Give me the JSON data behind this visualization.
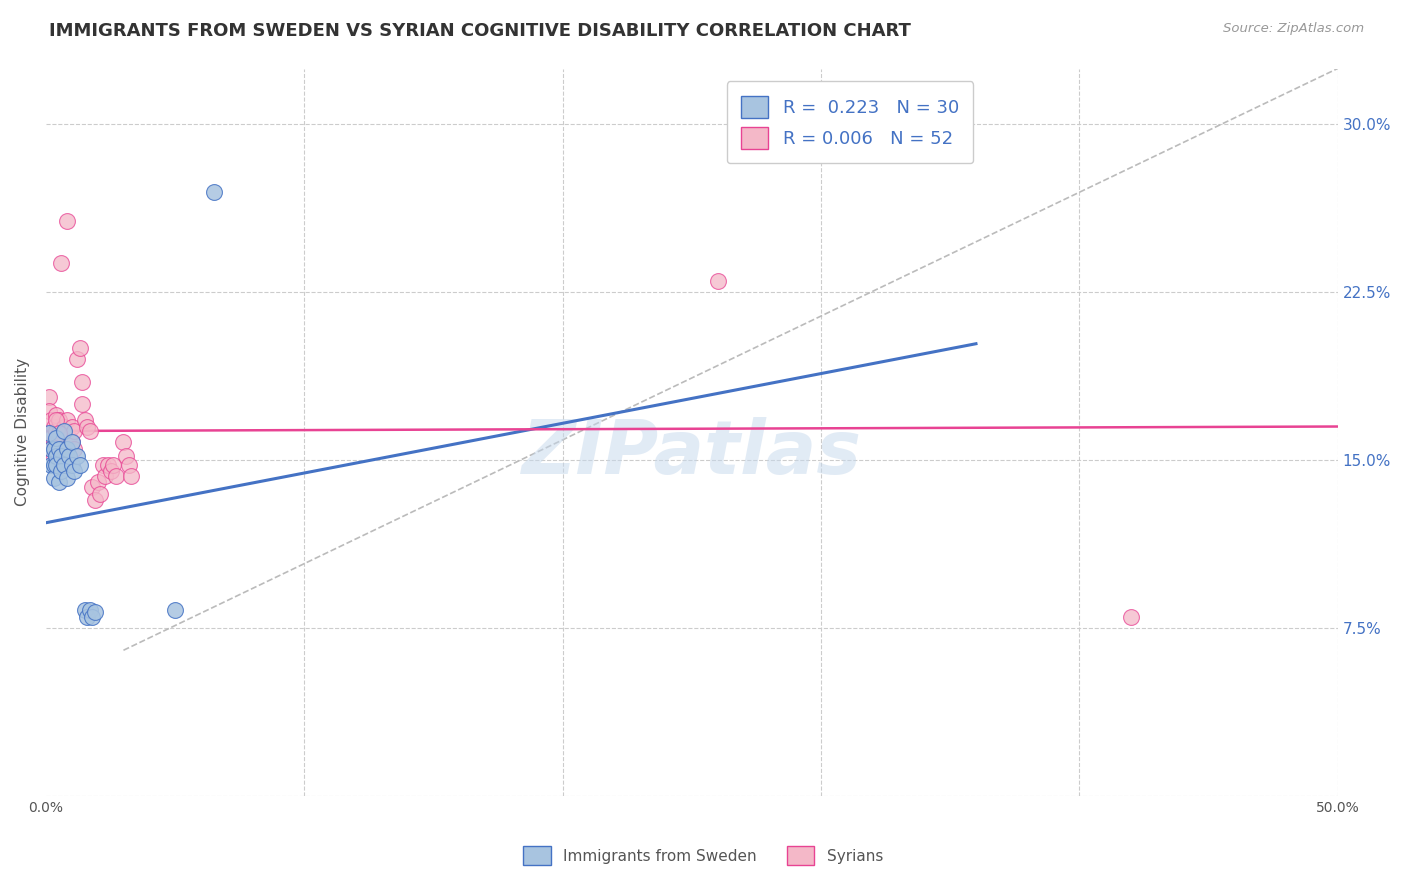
{
  "title": "IMMIGRANTS FROM SWEDEN VS SYRIAN COGNITIVE DISABILITY CORRELATION CHART",
  "source": "Source: ZipAtlas.com",
  "ylabel": "Cognitive Disability",
  "xlim": [
    0.0,
    0.5
  ],
  "ylim": [
    0.0,
    0.325
  ],
  "xticks": [
    0.0,
    0.1,
    0.2,
    0.3,
    0.4,
    0.5
  ],
  "xticklabels": [
    "0.0%",
    "",
    "",
    "",
    "",
    "50.0%"
  ],
  "yticks": [
    0.0,
    0.075,
    0.15,
    0.225,
    0.3
  ],
  "yticklabels": [
    "",
    "7.5%",
    "15.0%",
    "22.5%",
    "30.0%"
  ],
  "legend_r_blue": "0.223",
  "legend_n_blue": "30",
  "legend_r_pink": "0.006",
  "legend_n_pink": "52",
  "watermark": "ZIPatlas",
  "blue_color": "#a8c4e0",
  "pink_color": "#f4b8c8",
  "blue_line_color": "#4472C4",
  "pink_line_color": "#E84393",
  "blue_scatter": [
    [
      0.001,
      0.162
    ],
    [
      0.002,
      0.155
    ],
    [
      0.002,
      0.148
    ],
    [
      0.003,
      0.155
    ],
    [
      0.003,
      0.148
    ],
    [
      0.003,
      0.142
    ],
    [
      0.004,
      0.16
    ],
    [
      0.004,
      0.152
    ],
    [
      0.004,
      0.148
    ],
    [
      0.005,
      0.155
    ],
    [
      0.005,
      0.14
    ],
    [
      0.006,
      0.152
    ],
    [
      0.006,
      0.145
    ],
    [
      0.007,
      0.163
    ],
    [
      0.007,
      0.148
    ],
    [
      0.008,
      0.155
    ],
    [
      0.008,
      0.142
    ],
    [
      0.009,
      0.152
    ],
    [
      0.01,
      0.158
    ],
    [
      0.01,
      0.148
    ],
    [
      0.011,
      0.145
    ],
    [
      0.012,
      0.152
    ],
    [
      0.013,
      0.148
    ],
    [
      0.015,
      0.083
    ],
    [
      0.016,
      0.08
    ],
    [
      0.017,
      0.083
    ],
    [
      0.018,
      0.08
    ],
    [
      0.019,
      0.082
    ],
    [
      0.05,
      0.083
    ],
    [
      0.065,
      0.27
    ]
  ],
  "pink_scatter": [
    [
      0.001,
      0.178
    ],
    [
      0.001,
      0.172
    ],
    [
      0.002,
      0.168
    ],
    [
      0.002,
      0.16
    ],
    [
      0.002,
      0.155
    ],
    [
      0.003,
      0.165
    ],
    [
      0.003,
      0.158
    ],
    [
      0.003,
      0.152
    ],
    [
      0.004,
      0.17
    ],
    [
      0.004,
      0.163
    ],
    [
      0.004,
      0.158
    ],
    [
      0.005,
      0.168
    ],
    [
      0.005,
      0.16
    ],
    [
      0.006,
      0.155
    ],
    [
      0.006,
      0.148
    ],
    [
      0.007,
      0.165
    ],
    [
      0.007,
      0.158
    ],
    [
      0.008,
      0.168
    ],
    [
      0.008,
      0.158
    ],
    [
      0.009,
      0.16
    ],
    [
      0.009,
      0.152
    ],
    [
      0.01,
      0.165
    ],
    [
      0.01,
      0.158
    ],
    [
      0.011,
      0.163
    ],
    [
      0.011,
      0.155
    ],
    [
      0.012,
      0.195
    ],
    [
      0.013,
      0.2
    ],
    [
      0.014,
      0.185
    ],
    [
      0.014,
      0.175
    ],
    [
      0.015,
      0.168
    ],
    [
      0.016,
      0.165
    ],
    [
      0.017,
      0.163
    ],
    [
      0.018,
      0.138
    ],
    [
      0.019,
      0.132
    ],
    [
      0.02,
      0.14
    ],
    [
      0.021,
      0.135
    ],
    [
      0.022,
      0.148
    ],
    [
      0.023,
      0.143
    ],
    [
      0.024,
      0.148
    ],
    [
      0.025,
      0.145
    ],
    [
      0.026,
      0.148
    ],
    [
      0.027,
      0.143
    ],
    [
      0.03,
      0.158
    ],
    [
      0.031,
      0.152
    ],
    [
      0.032,
      0.148
    ],
    [
      0.033,
      0.143
    ],
    [
      0.006,
      0.238
    ],
    [
      0.008,
      0.257
    ],
    [
      0.004,
      0.168
    ],
    [
      0.005,
      0.162
    ],
    [
      0.26,
      0.23
    ],
    [
      0.42,
      0.08
    ]
  ],
  "blue_line_x": [
    0.0,
    0.36
  ],
  "blue_line_y": [
    0.122,
    0.202
  ],
  "pink_line_x": [
    0.0,
    0.5
  ],
  "pink_line_y": [
    0.163,
    0.165
  ],
  "dashed_line_x": [
    0.03,
    0.5
  ],
  "dashed_line_y": [
    0.065,
    0.325
  ]
}
